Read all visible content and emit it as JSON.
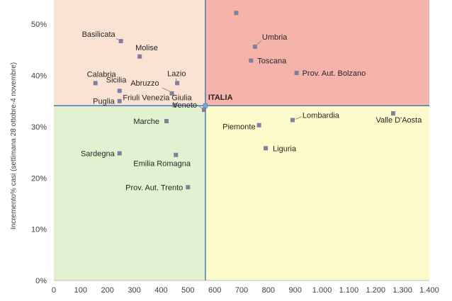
{
  "chart_data": {
    "type": "scatter",
    "title": "",
    "xlabel": "",
    "ylabel": "Incremento% casi (settimana 28 ottobre-4 novembre)",
    "xlim": [
      0,
      1400
    ],
    "ylim": [
      0,
      0.55
    ],
    "x_ticks": [
      "0",
      "100",
      "200",
      "300",
      "400",
      "500",
      "600",
      "700",
      "800",
      "900",
      "1.000",
      "1.100",
      "1.200",
      "1.300",
      "1.400"
    ],
    "y_ticks": [
      "0%",
      "10%",
      "20%",
      "30%",
      "40%",
      "50%"
    ],
    "reference": {
      "name": "ITALIA",
      "x": 565,
      "y": 0.341
    },
    "quadrant_colors": {
      "top_left": "#fbe3d4",
      "top_right": "#f6b3a9",
      "bottom_left": "#e2f1cf",
      "bottom_right": "#fdfbcc"
    },
    "line_color": "#4a7cb2",
    "marker_color": "#7f7f9f",
    "reference_marker_color": "#6fa8d6",
    "points": [
      {
        "name": "Basilicata",
        "x": 250,
        "y": 0.467
      },
      {
        "name": "Molise",
        "x": 320,
        "y": 0.437
      },
      {
        "name": "Calabria",
        "x": 155,
        "y": 0.385
      },
      {
        "name": "Sicilia",
        "x": 245,
        "y": 0.37
      },
      {
        "name": "Puglia",
        "x": 245,
        "y": 0.35
      },
      {
        "name": "Lazio",
        "x": 460,
        "y": 0.385
      },
      {
        "name": "Abruzzo",
        "x": 440,
        "y": 0.365
      },
      {
        "name": "Friuli Venezia Giulia",
        "x": 450,
        "y": 0.342
      },
      {
        "name": "Marche",
        "x": 420,
        "y": 0.311
      },
      {
        "name": "Veneto",
        "x": 560,
        "y": 0.333
      },
      {
        "name": "Sardegna",
        "x": 245,
        "y": 0.248
      },
      {
        "name": "Emilia Romagna",
        "x": 455,
        "y": 0.245
      },
      {
        "name": "Prov. Aut. Trento",
        "x": 500,
        "y": 0.182
      },
      {
        "name": "",
        "x": 680,
        "y": 0.522
      },
      {
        "name": "Umbria",
        "x": 750,
        "y": 0.456
      },
      {
        "name": "Toscana",
        "x": 735,
        "y": 0.429
      },
      {
        "name": "Prov. Aut. Bolzano",
        "x": 905,
        "y": 0.405
      },
      {
        "name": "Lombardia",
        "x": 890,
        "y": 0.313
      },
      {
        "name": "Piemonte",
        "x": 765,
        "y": 0.303
      },
      {
        "name": "Valle D'Aosta",
        "x": 1265,
        "y": 0.326
      },
      {
        "name": "Liguria",
        "x": 790,
        "y": 0.258
      }
    ]
  }
}
